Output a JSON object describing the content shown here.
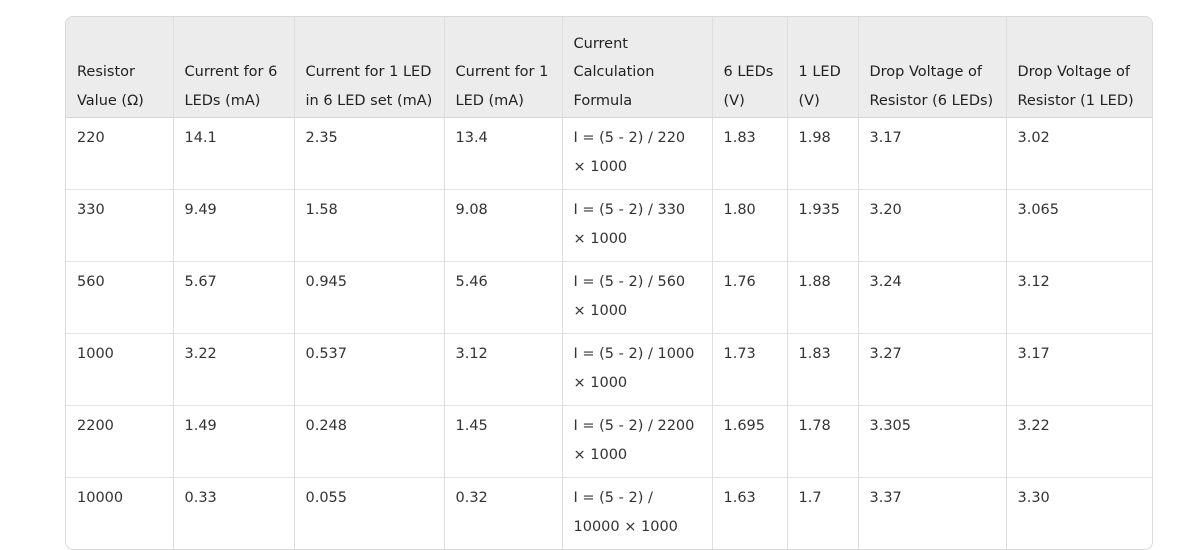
{
  "table": {
    "headers": [
      "Resistor Value (Ω)",
      "Current for 6 LEDs (mA)",
      "Current for 1 LED in 6 LED set (mA)",
      "Current for 1 LED (mA)",
      "Current Calculation Formula",
      "6 LEDs (V)",
      "1 LED (V)",
      "Drop Voltage of Resistor (6 LEDs)",
      "Drop Voltage of Resistor (1 LED)"
    ],
    "rows": [
      [
        "220",
        "14.1",
        "2.35",
        "13.4",
        "I = (5 - 2) / 220 × 1000",
        "1.83",
        "1.98",
        "3.17",
        "3.02"
      ],
      [
        "330",
        "9.49",
        "1.58",
        "9.08",
        "I = (5 - 2) / 330 × 1000",
        "1.80",
        "1.935",
        "3.20",
        "3.065"
      ],
      [
        "560",
        "5.67",
        "0.945",
        "5.46",
        "I = (5 - 2) / 560 × 1000",
        "1.76",
        "1.88",
        "3.24",
        "3.12"
      ],
      [
        "1000",
        "3.22",
        "0.537",
        "3.12",
        "I = (5 - 2) / 1000 × 1000",
        "1.73",
        "1.83",
        "3.27",
        "3.17"
      ],
      [
        "2200",
        "1.49",
        "0.248",
        "1.45",
        "I = (5 - 2) / 2200 × 1000",
        "1.695",
        "1.78",
        "3.305",
        "3.22"
      ],
      [
        "10000",
        "0.33",
        "0.055",
        "0.32",
        "I = (5 - 2) / 10000 × 1000",
        "1.63",
        "1.7",
        "3.37",
        "3.30"
      ]
    ]
  }
}
